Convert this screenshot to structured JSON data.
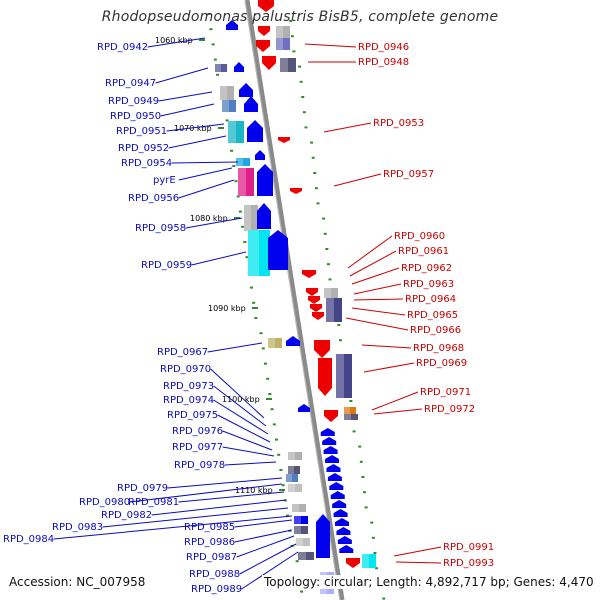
{
  "title": "Rhodopseudomonas palustris BisB5, complete genome",
  "accession": "Accession: NC_007958",
  "summary": "Topology: circular; Length: 4,892,717 bp; Genes: 4,470",
  "scale_ticks": [
    "1060 kbp",
    "1070 kbp",
    "1080 kbp",
    "1090 kbp",
    "1100 kbp",
    "1110 kbp"
  ],
  "genes_left_strand": [
    "RPD_0942",
    "RPD_0947",
    "RPD_0949",
    "RPD_0950",
    "RPD_0951",
    "RPD_0952",
    "RPD_0954",
    "pyrE",
    "RPD_0956",
    "RPD_0958",
    "RPD_0959",
    "RPD_0967",
    "RPD_0970",
    "RPD_0973",
    "RPD_0974",
    "RPD_0975",
    "RPD_0976",
    "RPD_0977",
    "RPD_0978",
    "RPD_0979",
    "RPD_0980",
    "RPD_0981",
    "RPD_0982",
    "RPD_0983",
    "RPD_0984",
    "RPD_0985",
    "RPD_0986",
    "RPD_0987",
    "RPD_0988",
    "RPD_0989"
  ],
  "genes_right_strand": [
    "RPD_0946",
    "RPD_0948",
    "RPD_0953",
    "RPD_0957",
    "RPD_0960",
    "RPD_0961",
    "RPD_0962",
    "RPD_0963",
    "RPD_0964",
    "RPD_0965",
    "RPD_0966",
    "RPD_0968",
    "RPD_0969",
    "RPD_0971",
    "RPD_0972",
    "RPD_0991",
    "RPD_0993"
  ],
  "colors": {
    "left_strand_labels": "#0b0bbf",
    "right_strand_labels": "#cc0000",
    "backbone": "#8a8a8a",
    "tick_marks": "#2e8b2e",
    "forward_gene": "#0000ee",
    "reverse_gene": "#ee0000"
  }
}
